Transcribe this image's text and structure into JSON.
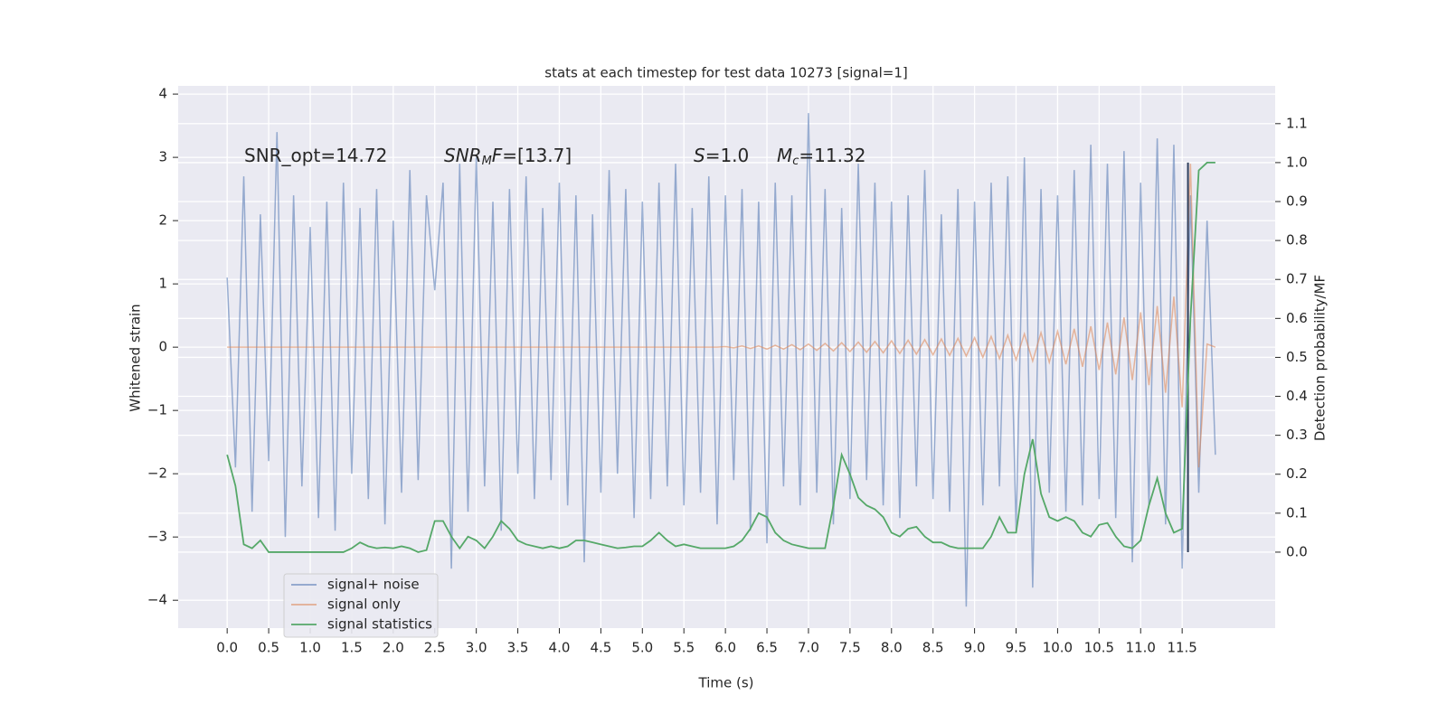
{
  "chart_data": {
    "type": "line",
    "title": "stats at each timestep for test data 10273 [signal=1]",
    "xlabel": "Time (s)",
    "ylabel": "Whitened strain",
    "y2label": "Detection probability/MF",
    "xlim": [
      -0.59,
      12.62
    ],
    "ylim": [
      -4.44,
      4.13
    ],
    "y2lim": [
      -0.195,
      1.197
    ],
    "xticks": [
      {
        "value": 0,
        "label": "0.0"
      },
      {
        "value": 0.5,
        "label": "0.5"
      },
      {
        "value": 1,
        "label": "1.0"
      },
      {
        "value": 1.5,
        "label": "1.5"
      },
      {
        "value": 2,
        "label": "2.0"
      },
      {
        "value": 2.5,
        "label": "2.5"
      },
      {
        "value": 3,
        "label": "3.0"
      },
      {
        "value": 3.5,
        "label": "3.5"
      },
      {
        "value": 4,
        "label": "4.0"
      },
      {
        "value": 4.5,
        "label": "4.5"
      },
      {
        "value": 5,
        "label": "5.0"
      },
      {
        "value": 5.5,
        "label": "5.5"
      },
      {
        "value": 6,
        "label": "6.0"
      },
      {
        "value": 6.5,
        "label": "6.5"
      },
      {
        "value": 7,
        "label": "7.0"
      },
      {
        "value": 7.5,
        "label": "7.5"
      },
      {
        "value": 8,
        "label": "8.0"
      },
      {
        "value": 8.5,
        "label": "8.5"
      },
      {
        "value": 9,
        "label": "9.0"
      },
      {
        "value": 9.5,
        "label": "9.5"
      },
      {
        "value": 10,
        "label": "10.0"
      },
      {
        "value": 10.5,
        "label": "10.5"
      },
      {
        "value": 11,
        "label": "11.0"
      },
      {
        "value": 11.5,
        "label": "11.5"
      }
    ],
    "yticks": [
      {
        "value": -4,
        "label": "−4"
      },
      {
        "value": -3,
        "label": "−3"
      },
      {
        "value": -2,
        "label": "−2"
      },
      {
        "value": -1,
        "label": "−1"
      },
      0,
      1,
      2,
      3,
      4
    ],
    "y2ticks": [
      {
        "value": 0,
        "label": "0.0"
      },
      {
        "value": 0.1,
        "label": "0.1"
      },
      {
        "value": 0.2,
        "label": "0.2"
      },
      {
        "value": 0.3,
        "label": "0.3"
      },
      {
        "value": 0.4,
        "label": "0.4"
      },
      {
        "value": 0.5,
        "label": "0.5"
      },
      {
        "value": 0.6,
        "label": "0.6"
      },
      {
        "value": 0.7,
        "label": "0.7"
      },
      {
        "value": 0.8,
        "label": "0.8"
      },
      {
        "value": 0.9,
        "label": "0.9"
      },
      {
        "value": 1,
        "label": "1.0"
      },
      {
        "value": 1.1,
        "label": "1.1"
      }
    ],
    "grid": true,
    "legend": "lower left",
    "annotations": [
      {
        "rest": "SNR_opt=14.72"
      },
      {
        "base": "SNR",
        "sub": "M",
        "base2": "F",
        "rest": "=[13.7]"
      },
      {
        "base": "S",
        "rest": "=1.0"
      },
      {
        "base": "M",
        "sub": "c",
        "rest": "=11.32"
      }
    ],
    "vline_x": 11.57,
    "vline_color": "#2f3f5c",
    "x": [
      0.0,
      0.1,
      0.2,
      0.3,
      0.4,
      0.5,
      0.6,
      0.7,
      0.8,
      0.9,
      1.0,
      1.1,
      1.2,
      1.3,
      1.4,
      1.5,
      1.6,
      1.7,
      1.8,
      1.9,
      2.0,
      2.1,
      2.2,
      2.3,
      2.4,
      2.5,
      2.6,
      2.7,
      2.8,
      2.9,
      3.0,
      3.1,
      3.2,
      3.3,
      3.4,
      3.5,
      3.6,
      3.7,
      3.8,
      3.9,
      4.0,
      4.1,
      4.2,
      4.3,
      4.4,
      4.5,
      4.6,
      4.7,
      4.8,
      4.9,
      5.0,
      5.1,
      5.2,
      5.3,
      5.4,
      5.5,
      5.6,
      5.7,
      5.8,
      5.9,
      6.0,
      6.1,
      6.2,
      6.3,
      6.4,
      6.5,
      6.6,
      6.7,
      6.8,
      6.9,
      7.0,
      7.1,
      7.2,
      7.3,
      7.4,
      7.5,
      7.6,
      7.7,
      7.8,
      7.9,
      8.0,
      8.1,
      8.2,
      8.3,
      8.4,
      8.5,
      8.6,
      8.7,
      8.8,
      8.9,
      9.0,
      9.1,
      9.2,
      9.3,
      9.4,
      9.5,
      9.6,
      9.7,
      9.8,
      9.9,
      10.0,
      10.1,
      10.2,
      10.3,
      10.4,
      10.5,
      10.6,
      10.7,
      10.8,
      10.9,
      11.0,
      11.1,
      11.2,
      11.3,
      11.4,
      11.5,
      11.6,
      11.7,
      11.8,
      11.9
    ],
    "series": [
      {
        "name": "signal+ noise",
        "color": "#4c72b0",
        "values": [
          1.1,
          -1.9,
          2.7,
          -2.6,
          2.1,
          -1.8,
          3.4,
          -3.0,
          2.4,
          -2.2,
          1.9,
          -2.7,
          2.3,
          -2.9,
          2.6,
          -2.0,
          2.2,
          -2.4,
          2.5,
          -2.8,
          2.0,
          -2.3,
          2.8,
          -2.1,
          2.4,
          0.9,
          2.6,
          -3.5,
          2.9,
          -2.6,
          3.0,
          -2.2,
          2.3,
          -2.9,
          2.5,
          -2.0,
          2.7,
          -2.4,
          2.2,
          -2.1,
          2.6,
          -2.5,
          2.4,
          -3.4,
          2.1,
          -2.3,
          2.8,
          -2.0,
          2.5,
          -2.7,
          2.3,
          -2.4,
          2.6,
          -2.2,
          2.9,
          -2.5,
          2.2,
          -2.3,
          2.7,
          -2.8,
          2.4,
          -2.1,
          2.5,
          -2.9,
          2.3,
          -3.1,
          2.6,
          -2.2,
          2.4,
          -2.5,
          3.7,
          -2.3,
          2.5,
          -2.8,
          2.2,
          -2.4,
          2.9,
          -2.1,
          2.6,
          -2.5,
          2.3,
          -2.7,
          2.4,
          -2.2,
          2.8,
          -2.4,
          2.1,
          -2.6,
          2.5,
          -4.1,
          2.3,
          -2.5,
          2.6,
          -2.2,
          2.7,
          -2.9,
          3.0,
          -3.8,
          2.5,
          -2.3,
          2.4,
          -2.6,
          2.8,
          -2.5,
          3.2,
          -2.4,
          2.9,
          -2.7,
          3.1,
          -3.4,
          2.6,
          -2.5,
          3.3,
          -2.8,
          3.2,
          -3.5,
          2.4,
          -2.3,
          2.0,
          -1.7
        ]
      },
      {
        "name": "signal only",
        "color": "#dd8452",
        "values": [
          0,
          0,
          0,
          0,
          0,
          0,
          0,
          0,
          0,
          0,
          0,
          0,
          0,
          0,
          0,
          0,
          0,
          0,
          0,
          0,
          0,
          0,
          0,
          0,
          0,
          0,
          0,
          0,
          0,
          0,
          0,
          0,
          0,
          0,
          0,
          0,
          0,
          0,
          0,
          0,
          0,
          0,
          0,
          0,
          0,
          0,
          0,
          0,
          0,
          0,
          0,
          0,
          0,
          0,
          0,
          0,
          0,
          0,
          0,
          0,
          0.01,
          -0.01,
          0.02,
          -0.02,
          0.02,
          -0.03,
          0.03,
          -0.03,
          0.04,
          -0.04,
          0.05,
          -0.05,
          0.06,
          -0.06,
          0.07,
          -0.07,
          0.08,
          -0.08,
          0.09,
          -0.09,
          0.1,
          -0.1,
          0.11,
          -0.11,
          0.12,
          -0.12,
          0.13,
          -0.13,
          0.14,
          -0.14,
          0.15,
          -0.16,
          0.17,
          -0.18,
          0.19,
          -0.2,
          0.21,
          -0.22,
          0.23,
          -0.24,
          0.25,
          -0.27,
          0.29,
          -0.31,
          0.33,
          -0.36,
          0.39,
          -0.43,
          0.47,
          -0.52,
          0.55,
          -0.6,
          0.65,
          -0.72,
          0.8,
          -0.95,
          2.9,
          -1.9,
          0.05,
          0.0
        ]
      },
      {
        "name": "signal statistics",
        "color": "#55a868",
        "axis": "y2",
        "values": [
          0.25,
          0.17,
          0.02,
          0.01,
          0.03,
          0.0,
          0.0,
          0.0,
          0.0,
          0.0,
          0.0,
          0.0,
          0.0,
          0.0,
          0.0,
          0.01,
          0.025,
          0.015,
          0.01,
          0.012,
          0.01,
          0.015,
          0.01,
          0.0,
          0.005,
          0.08,
          0.08,
          0.04,
          0.01,
          0.04,
          0.03,
          0.01,
          0.04,
          0.08,
          0.06,
          0.03,
          0.02,
          0.015,
          0.01,
          0.015,
          0.01,
          0.015,
          0.03,
          0.03,
          0.025,
          0.02,
          0.015,
          0.01,
          0.012,
          0.015,
          0.015,
          0.03,
          0.05,
          0.03,
          0.015,
          0.02,
          0.015,
          0.01,
          0.01,
          0.01,
          0.01,
          0.015,
          0.03,
          0.06,
          0.1,
          0.09,
          0.05,
          0.03,
          0.02,
          0.015,
          0.01,
          0.01,
          0.01,
          0.12,
          0.25,
          0.2,
          0.14,
          0.12,
          0.11,
          0.09,
          0.05,
          0.04,
          0.06,
          0.065,
          0.04,
          0.025,
          0.025,
          0.015,
          0.01,
          0.01,
          0.01,
          0.01,
          0.04,
          0.09,
          0.05,
          0.05,
          0.2,
          0.29,
          0.15,
          0.09,
          0.08,
          0.09,
          0.08,
          0.05,
          0.04,
          0.07,
          0.075,
          0.04,
          0.015,
          0.01,
          0.03,
          0.12,
          0.19,
          0.1,
          0.05,
          0.06,
          0.6,
          0.98,
          1.0,
          1.0
        ]
      }
    ]
  }
}
